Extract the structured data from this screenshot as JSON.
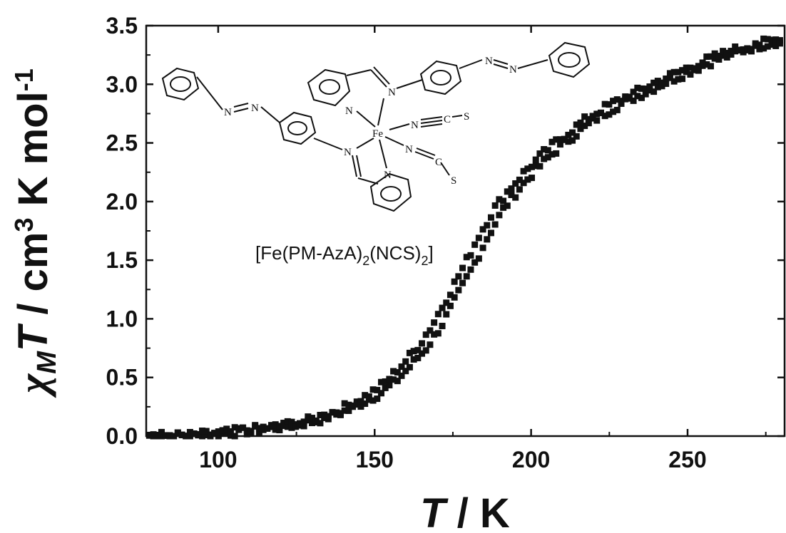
{
  "chart_data": {
    "type": "scatter",
    "xlabel_var": "T",
    "xlabel_unit": " / K",
    "ylabel_chi": "χ",
    "ylabel_sub": "M",
    "ylabel_var": "T",
    "ylabel_unit_a": " / cm",
    "ylabel_sup3": "3",
    "ylabel_unit_b": " K mol",
    "ylabel_supm1": "-1",
    "xlim": [
      77,
      281
    ],
    "ylim": [
      0,
      3.5
    ],
    "xticks": [
      100,
      150,
      200,
      250
    ],
    "yticks": [
      0.0,
      0.5,
      1.0,
      1.5,
      2.0,
      2.5,
      3.0,
      3.5
    ],
    "grid": false,
    "marker": "square",
    "marker_color": "#111111",
    "curve_points": [
      [
        78,
        0.01
      ],
      [
        90,
        0.0
      ],
      [
        100,
        0.02
      ],
      [
        110,
        0.05
      ],
      [
        120,
        0.08
      ],
      [
        130,
        0.13
      ],
      [
        140,
        0.22
      ],
      [
        150,
        0.36
      ],
      [
        155,
        0.46
      ],
      [
        160,
        0.6
      ],
      [
        165,
        0.75
      ],
      [
        170,
        0.95
      ],
      [
        175,
        1.2
      ],
      [
        180,
        1.45
      ],
      [
        185,
        1.72
      ],
      [
        190,
        1.95
      ],
      [
        195,
        2.12
      ],
      [
        200,
        2.27
      ],
      [
        205,
        2.4
      ],
      [
        210,
        2.52
      ],
      [
        215,
        2.62
      ],
      [
        220,
        2.72
      ],
      [
        225,
        2.8
      ],
      [
        230,
        2.87
      ],
      [
        235,
        2.93
      ],
      [
        240,
        3.0
      ],
      [
        245,
        3.06
      ],
      [
        250,
        3.12
      ],
      [
        255,
        3.18
      ],
      [
        260,
        3.23
      ],
      [
        265,
        3.28
      ],
      [
        270,
        3.32
      ],
      [
        275,
        3.35
      ],
      [
        280,
        3.38
      ]
    ]
  },
  "inset": {
    "compound_prefix": "[Fe(PM-AzA)",
    "compound_sub1": "2",
    "compound_mid": "(NCS)",
    "compound_sub2": "2",
    "compound_suffix": "]",
    "atoms": {
      "fe": "Fe",
      "n_py_top": "N",
      "n_im_top": "N",
      "n_azo_r1": "N",
      "n_azo_r2": "N",
      "n_azo_l1": "N",
      "n_azo_l2": "N",
      "n_im_bot": "N",
      "n_py_bot": "N",
      "ncs1_n": "N",
      "ncs1_c": "C",
      "ncs1_s": "S",
      "ncs2_n": "N",
      "ncs2_c": "C",
      "ncs2_s": "S"
    }
  }
}
